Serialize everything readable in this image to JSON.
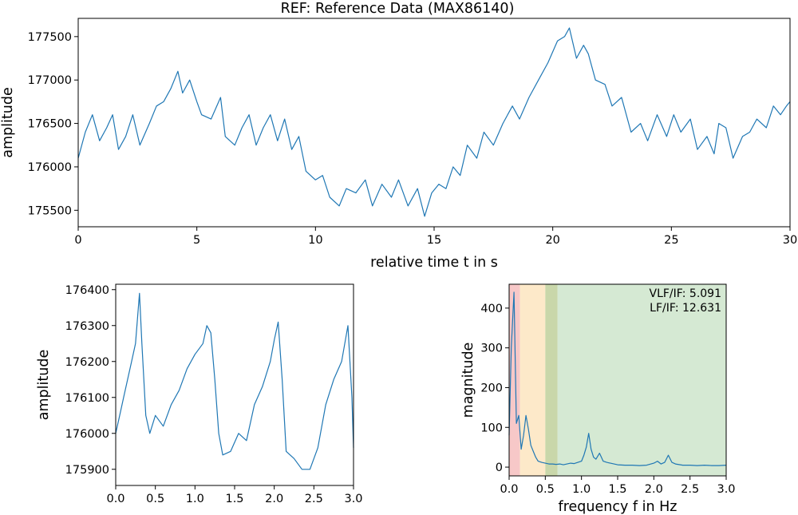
{
  "chart_data": [
    {
      "id": "top",
      "type": "line",
      "title": "REF: Reference Data (MAX86140)",
      "xlabel": "relative time t in s",
      "ylabel": "amplitude",
      "xlim": [
        0,
        30
      ],
      "ylim": [
        175310,
        177710
      ],
      "xticks": [
        0,
        5,
        10,
        15,
        20,
        25,
        30
      ],
      "xtick_labels": [
        "0",
        "5",
        "10",
        "15",
        "20",
        "25",
        "30"
      ],
      "yticks": [
        175500,
        176000,
        176500,
        177000,
        177500
      ],
      "ytick_labels": [
        "175500",
        "176000",
        "176500",
        "177000",
        "177500"
      ],
      "series": [
        {
          "color": "#1f77b4",
          "x": [
            0,
            0.3,
            0.6,
            0.9,
            1.2,
            1.45,
            1.7,
            2.0,
            2.3,
            2.6,
            3.0,
            3.3,
            3.6,
            3.9,
            4.2,
            4.4,
            4.7,
            5.0,
            5.2,
            5.6,
            6.0,
            6.2,
            6.6,
            6.9,
            7.2,
            7.5,
            7.8,
            8.1,
            8.4,
            8.7,
            9.0,
            9.3,
            9.6,
            10.0,
            10.3,
            10.6,
            11.0,
            11.3,
            11.7,
            12.1,
            12.4,
            12.8,
            13.2,
            13.5,
            13.9,
            14.3,
            14.6,
            14.9,
            15.2,
            15.5,
            15.8,
            16.1,
            16.4,
            16.8,
            17.1,
            17.5,
            17.9,
            18.3,
            18.6,
            19.0,
            19.4,
            19.8,
            20.2,
            20.5,
            20.7,
            21.0,
            21.3,
            21.5,
            21.8,
            22.2,
            22.5,
            22.9,
            23.3,
            23.7,
            24.0,
            24.4,
            24.8,
            25.1,
            25.4,
            25.8,
            26.1,
            26.5,
            26.8,
            27.0,
            27.3,
            27.6,
            28.0,
            28.3,
            28.6,
            29.0,
            29.3,
            29.6,
            29.85,
            30.0
          ],
          "y": [
            176100,
            176400,
            176600,
            176300,
            176450,
            176600,
            176200,
            176350,
            176600,
            176250,
            176500,
            176700,
            176750,
            176900,
            177100,
            176850,
            177000,
            176750,
            176600,
            176550,
            176800,
            176350,
            176250,
            176450,
            176600,
            176250,
            176450,
            176600,
            176300,
            176550,
            176200,
            176350,
            175950,
            175850,
            175900,
            175650,
            175550,
            175750,
            175700,
            175850,
            175550,
            175800,
            175650,
            175850,
            175550,
            175750,
            175430,
            175700,
            175800,
            175750,
            176000,
            175900,
            176250,
            176100,
            176400,
            176250,
            176500,
            176700,
            176550,
            176800,
            177000,
            177200,
            177450,
            177500,
            177600,
            177250,
            177400,
            177300,
            177000,
            176950,
            176700,
            176800,
            176400,
            176500,
            176300,
            176600,
            176350,
            176600,
            176400,
            176550,
            176200,
            176350,
            176150,
            176500,
            176450,
            176100,
            176350,
            176400,
            176550,
            176450,
            176700,
            176600,
            176700,
            176750
          ]
        }
      ]
    },
    {
      "id": "bottom-left",
      "type": "line",
      "title": "",
      "xlabel": "",
      "ylabel": "amplitude",
      "xlim": [
        0,
        3
      ],
      "ylim": [
        175855,
        176415
      ],
      "xticks": [
        0,
        0.5,
        1.0,
        1.5,
        2.0,
        2.5,
        3.0
      ],
      "xtick_labels": [
        "0.0",
        "0.5",
        "1.0",
        "1.5",
        "2.0",
        "2.5",
        "3.0"
      ],
      "yticks": [
        175900,
        176000,
        176100,
        176200,
        176300,
        176400
      ],
      "ytick_labels": [
        "175900",
        "176000",
        "176100",
        "176200",
        "176300",
        "176400"
      ],
      "series": [
        {
          "color": "#1f77b4",
          "x": [
            0,
            0.05,
            0.1,
            0.15,
            0.2,
            0.25,
            0.3,
            0.33,
            0.38,
            0.43,
            0.5,
            0.6,
            0.7,
            0.8,
            0.9,
            1.0,
            1.1,
            1.15,
            1.2,
            1.25,
            1.3,
            1.35,
            1.45,
            1.55,
            1.65,
            1.75,
            1.85,
            1.95,
            2.0,
            2.05,
            2.1,
            2.15,
            2.25,
            2.35,
            2.45,
            2.55,
            2.65,
            2.75,
            2.85,
            2.93,
            2.98,
            3.0
          ],
          "y": [
            176000,
            176050,
            176100,
            176150,
            176200,
            176250,
            176390,
            176250,
            176050,
            176000,
            176050,
            176020,
            176080,
            176120,
            176180,
            176220,
            176250,
            176300,
            176280,
            176150,
            176000,
            175940,
            175950,
            176000,
            175980,
            176080,
            176130,
            176200,
            176260,
            176310,
            176150,
            175950,
            175930,
            175900,
            175900,
            175960,
            176080,
            176150,
            176200,
            176300,
            176100,
            175960
          ]
        }
      ]
    },
    {
      "id": "bottom-right",
      "type": "line",
      "title": "",
      "xlabel": "frequency f in Hz",
      "ylabel": "magnitude",
      "xlim": [
        0,
        3
      ],
      "ylim": [
        -22,
        460
      ],
      "xticks": [
        0,
        0.5,
        1.0,
        1.5,
        2.0,
        2.5,
        3.0
      ],
      "xtick_labels": [
        "0.0",
        "0.5",
        "1.0",
        "1.5",
        "2.0",
        "2.5",
        "3.0"
      ],
      "yticks": [
        0,
        100,
        200,
        300,
        400
      ],
      "ytick_labels": [
        "0",
        "100",
        "200",
        "300",
        "400"
      ],
      "bands": [
        {
          "x0": 0.0,
          "x1": 0.15,
          "color": "#f7c8c8"
        },
        {
          "x0": 0.15,
          "x1": 0.5,
          "color": "#fde9c9"
        },
        {
          "x0": 0.5,
          "x1": 0.67,
          "color": "#c9d7aa"
        },
        {
          "x0": 0.67,
          "x1": 3.0,
          "color": "#d5e9d3"
        }
      ],
      "annotations": [
        "VLF/IF: 5.091",
        "LF/IF: 12.631"
      ],
      "series": [
        {
          "color": "#1f77b4",
          "x": [
            0,
            0.03,
            0.067,
            0.1,
            0.133,
            0.167,
            0.2,
            0.233,
            0.267,
            0.3,
            0.333,
            0.367,
            0.4,
            0.45,
            0.5,
            0.55,
            0.6,
            0.65,
            0.7,
            0.75,
            0.8,
            0.85,
            0.9,
            0.95,
            1.0,
            1.033,
            1.067,
            1.1,
            1.133,
            1.167,
            1.2,
            1.25,
            1.3,
            1.35,
            1.4,
            1.5,
            1.6,
            1.7,
            1.8,
            1.9,
            2.0,
            2.05,
            2.1,
            2.15,
            2.2,
            2.25,
            2.3,
            2.4,
            2.5,
            2.6,
            2.7,
            2.8,
            2.9,
            3.0
          ],
          "y": [
            80,
            300,
            440,
            110,
            130,
            45,
            80,
            130,
            95,
            55,
            40,
            25,
            15,
            12,
            10,
            8,
            8,
            7,
            8,
            6,
            8,
            10,
            9,
            12,
            15,
            30,
            50,
            85,
            45,
            25,
            20,
            35,
            15,
            12,
            10,
            6,
            5,
            5,
            4,
            5,
            10,
            15,
            8,
            12,
            30,
            12,
            8,
            5,
            5,
            4,
            5,
            4,
            4,
            5
          ]
        }
      ]
    }
  ]
}
